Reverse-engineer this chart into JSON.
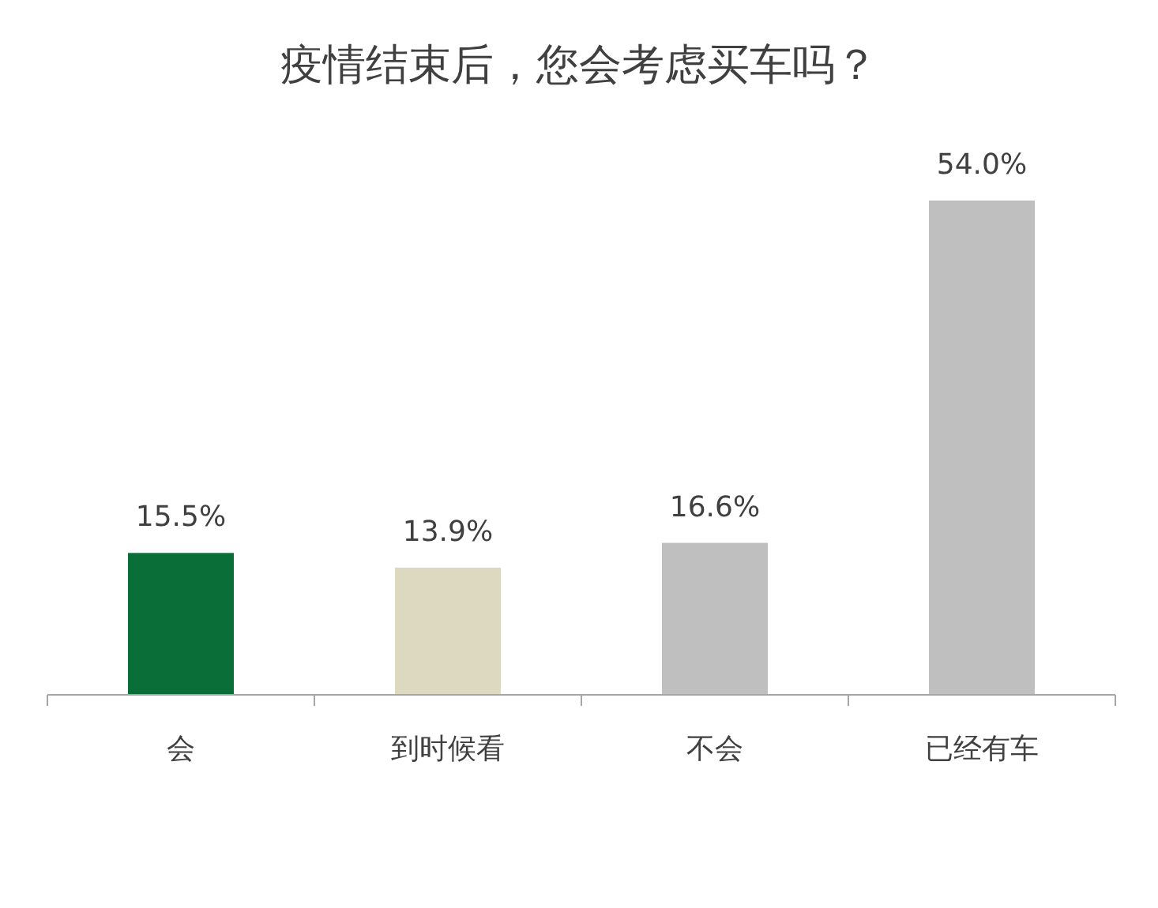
{
  "chart_data": {
    "type": "bar",
    "title": "疫情结束后，您会考虑买车吗？",
    "categories": [
      "会",
      "到时候看",
      "不会",
      "已经有车"
    ],
    "values": [
      15.5,
      13.9,
      16.6,
      54.0
    ],
    "colors": [
      "#0a6e38",
      "#dcd9c0",
      "#c0bfc0",
      "#c0bfc0"
    ],
    "value_labels": [
      "15.5%",
      "13.9%",
      "16.6%",
      "54.0%"
    ]
  }
}
